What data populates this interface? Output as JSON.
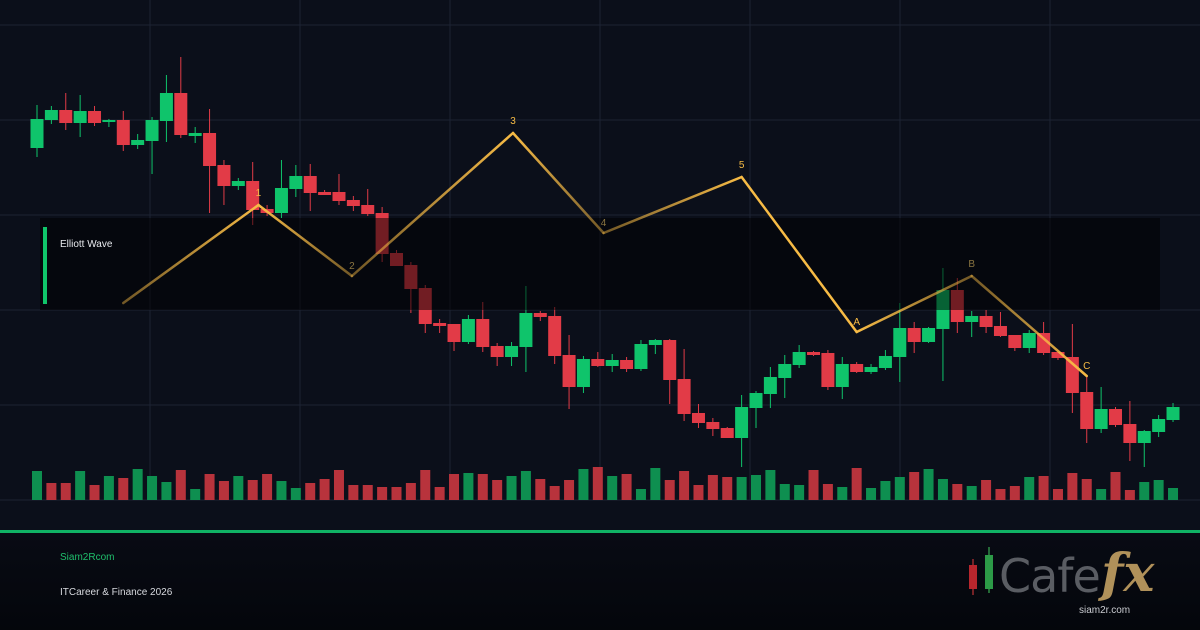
{
  "chart_data": {
    "type": "candlestick",
    "title": "",
    "xlabel": "",
    "ylabel": "",
    "grid": true,
    "legend": {
      "label": "Elliott Wave",
      "placement": "left"
    },
    "colors": {
      "up": "#0fc46b",
      "down": "#e23b47",
      "wave": "#f7bb45",
      "grid": "#1c2333",
      "background": "#0b0f1a"
    },
    "candles": [
      [
        352,
        395,
        343,
        381
      ],
      [
        380,
        394,
        376,
        390
      ],
      [
        390,
        407,
        370,
        377
      ],
      [
        377,
        405,
        363,
        389
      ],
      [
        389,
        394,
        374,
        377
      ],
      [
        378,
        381,
        373,
        380
      ],
      [
        380,
        389,
        349,
        355
      ],
      [
        355,
        366,
        351,
        360
      ],
      [
        359,
        383,
        326,
        380
      ],
      [
        379,
        425,
        358,
        407
      ],
      [
        407,
        443,
        362,
        365
      ],
      [
        364,
        373,
        357,
        367
      ],
      [
        367,
        391,
        287,
        334
      ],
      [
        335,
        340,
        295,
        314
      ],
      [
        314,
        322,
        310,
        319
      ],
      [
        319,
        338,
        275,
        290
      ],
      [
        291,
        295,
        284,
        287
      ],
      [
        287,
        340,
        282,
        312
      ],
      [
        311,
        335,
        303,
        324
      ],
      [
        324,
        336,
        289,
        307
      ],
      [
        308,
        310,
        305,
        305
      ],
      [
        308,
        326,
        295,
        299
      ],
      [
        300,
        304,
        289,
        294
      ],
      [
        295,
        311,
        284,
        286
      ],
      [
        287,
        293,
        238,
        246
      ],
      [
        247,
        250,
        234,
        234
      ],
      [
        235,
        238,
        187,
        211
      ],
      [
        212,
        215,
        167,
        176
      ],
      [
        177,
        181,
        167,
        174
      ],
      [
        176,
        176,
        149,
        158
      ],
      [
        158,
        185,
        156,
        181
      ],
      [
        181,
        198,
        148,
        153
      ],
      [
        154,
        157,
        134,
        143
      ],
      [
        143,
        158,
        134,
        154
      ],
      [
        153,
        214,
        128,
        187
      ],
      [
        187,
        189,
        179,
        183
      ],
      [
        184,
        193,
        136,
        144
      ],
      [
        145,
        165,
        91,
        113
      ],
      [
        113,
        144,
        107,
        141
      ],
      [
        141,
        148,
        133,
        134
      ],
      [
        134,
        146,
        128,
        140
      ],
      [
        140,
        143,
        128,
        131
      ],
      [
        131,
        160,
        129,
        156
      ],
      [
        155,
        161,
        146,
        160
      ],
      [
        160,
        161,
        96,
        120
      ],
      [
        121,
        151,
        79,
        86
      ],
      [
        87,
        96,
        72,
        77
      ],
      [
        78,
        82,
        64,
        71
      ],
      [
        72,
        73,
        62,
        62
      ],
      [
        62,
        105,
        33,
        93
      ],
      [
        92,
        109,
        72,
        107
      ],
      [
        106,
        133,
        92,
        123
      ],
      [
        122,
        145,
        102,
        136
      ],
      [
        135,
        155,
        132,
        148
      ],
      [
        148,
        149,
        144,
        145
      ],
      [
        147,
        150,
        110,
        113
      ],
      [
        113,
        143,
        101,
        136
      ],
      [
        136,
        138,
        127,
        128
      ],
      [
        128,
        136,
        126,
        133
      ],
      [
        132,
        150,
        130,
        144
      ],
      [
        143,
        197,
        118,
        172
      ],
      [
        172,
        178,
        147,
        158
      ],
      [
        158,
        173,
        157,
        172
      ],
      [
        171,
        232,
        119,
        210
      ],
      [
        210,
        222,
        167,
        178
      ],
      [
        178,
        189,
        163,
        184
      ],
      [
        184,
        190,
        167,
        173
      ],
      [
        174,
        188,
        163,
        164
      ],
      [
        165,
        165,
        149,
        152
      ],
      [
        152,
        170,
        147,
        167
      ],
      [
        167,
        178,
        145,
        147
      ],
      [
        148,
        148,
        140,
        142
      ],
      [
        143,
        176,
        87,
        107
      ],
      [
        108,
        123,
        57,
        71
      ],
      [
        71,
        113,
        67,
        91
      ],
      [
        91,
        93,
        73,
        75
      ],
      [
        76,
        99,
        39,
        57
      ],
      [
        57,
        70,
        33,
        69
      ],
      [
        68,
        85,
        63,
        81
      ],
      [
        80,
        97,
        78,
        93
      ]
    ],
    "candle_fields": [
      "open",
      "high",
      "low",
      "close"
    ],
    "volume": [
      29,
      17,
      17,
      29,
      15,
      24,
      22,
      31,
      24,
      18,
      30,
      11,
      26,
      19,
      24,
      20,
      26,
      19,
      12,
      17,
      21,
      30,
      15,
      15,
      13,
      13,
      17,
      30,
      13,
      26,
      27,
      26,
      20,
      24,
      29,
      21,
      14,
      20,
      31,
      33,
      24,
      26,
      11,
      32,
      20,
      29,
      15,
      25,
      23,
      23,
      25,
      30,
      16,
      15,
      30,
      16,
      13,
      32,
      12,
      19,
      23,
      28,
      31,
      21,
      16,
      14,
      20,
      11,
      14,
      23,
      24,
      11,
      27,
      21,
      11,
      28,
      10,
      18,
      20,
      12
    ],
    "volume_direction": "GRRGRGRGGGRGRRGRRGGRRRRRRRRRRRGRRGGRRRGRGRGGRRRRRGGGGGRRGRGGGRGGRGRRRGRRRRGRRGGG",
    "elliott_wave": [
      {
        "label": "",
        "index": 7,
        "price": 197
      },
      {
        "label": "1",
        "index": 16.4,
        "price": 295
      },
      {
        "label": "2",
        "index": 22.9,
        "price": 224
      },
      {
        "label": "3",
        "index": 34.1,
        "price": 367
      },
      {
        "label": "4",
        "index": 40.4,
        "price": 267
      },
      {
        "label": "5",
        "index": 50,
        "price": 323
      },
      {
        "label": "A",
        "index": 58,
        "price": 168
      },
      {
        "label": "B",
        "index": 66,
        "price": 224
      },
      {
        "label": "C",
        "index": 74,
        "price": 124
      }
    ]
  },
  "legend_label": "Elliott Wave",
  "footer": {
    "site": "Siam2Rcom",
    "tagline": "ITCareer & Finance 2026"
  },
  "logo": {
    "text_main": "Cafe",
    "text_accent": "fx",
    "url": "siam2r.com"
  }
}
